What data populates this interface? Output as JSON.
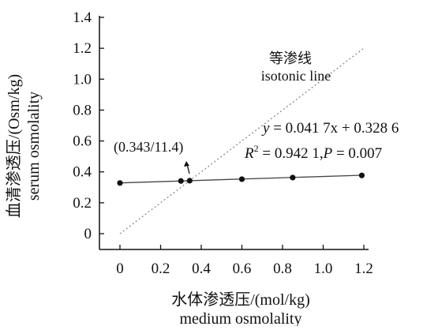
{
  "chart_data": {
    "type": "scatter",
    "xlabel": "水体渗透压/(mol/kg)",
    "xlabel_en": "medium osmolality",
    "ylabel": "血清渗透压/(Osm/kg)",
    "ylabel_en": "serum osmolality",
    "xlim": [
      0,
      1.2
    ],
    "ylim": [
      0,
      1.4
    ],
    "x_ticks": [
      "0",
      "0.2",
      "0.4",
      "0.6",
      "0.8",
      "1.0",
      "1.2"
    ],
    "y_ticks": [
      "0",
      "0.2",
      "0.4",
      "0.6",
      "0.8",
      "1.0",
      "1.2",
      "1.4"
    ],
    "grid": false,
    "series": [
      {
        "x": [
          0.0,
          0.3,
          0.343,
          0.6,
          0.85,
          1.19
        ],
        "y": [
          0.328,
          0.341,
          0.343,
          0.353,
          0.363,
          0.377
        ]
      }
    ],
    "fit_line": {
      "slope": 0.0417,
      "intercept": 0.3286
    },
    "reference_line": {
      "x": [
        0,
        1.2
      ],
      "y": [
        0,
        1.2
      ]
    },
    "annotations": {
      "isotonic_cn": "等渗线",
      "isotonic_en": "isotonic line",
      "intersection": "(0.343/11.4)",
      "equation_y": "y",
      "equation_rest": " = 0.041 7x + 0.328 6",
      "r2_r": "R",
      "r2_sup": "2",
      "r2_rest": " = 0.942 1,",
      "p_p": "P",
      "p_rest": " = 0.007"
    },
    "colors": {
      "points": "#111111",
      "fit": "#444444",
      "isotonic": "#8a8a8a"
    }
  }
}
